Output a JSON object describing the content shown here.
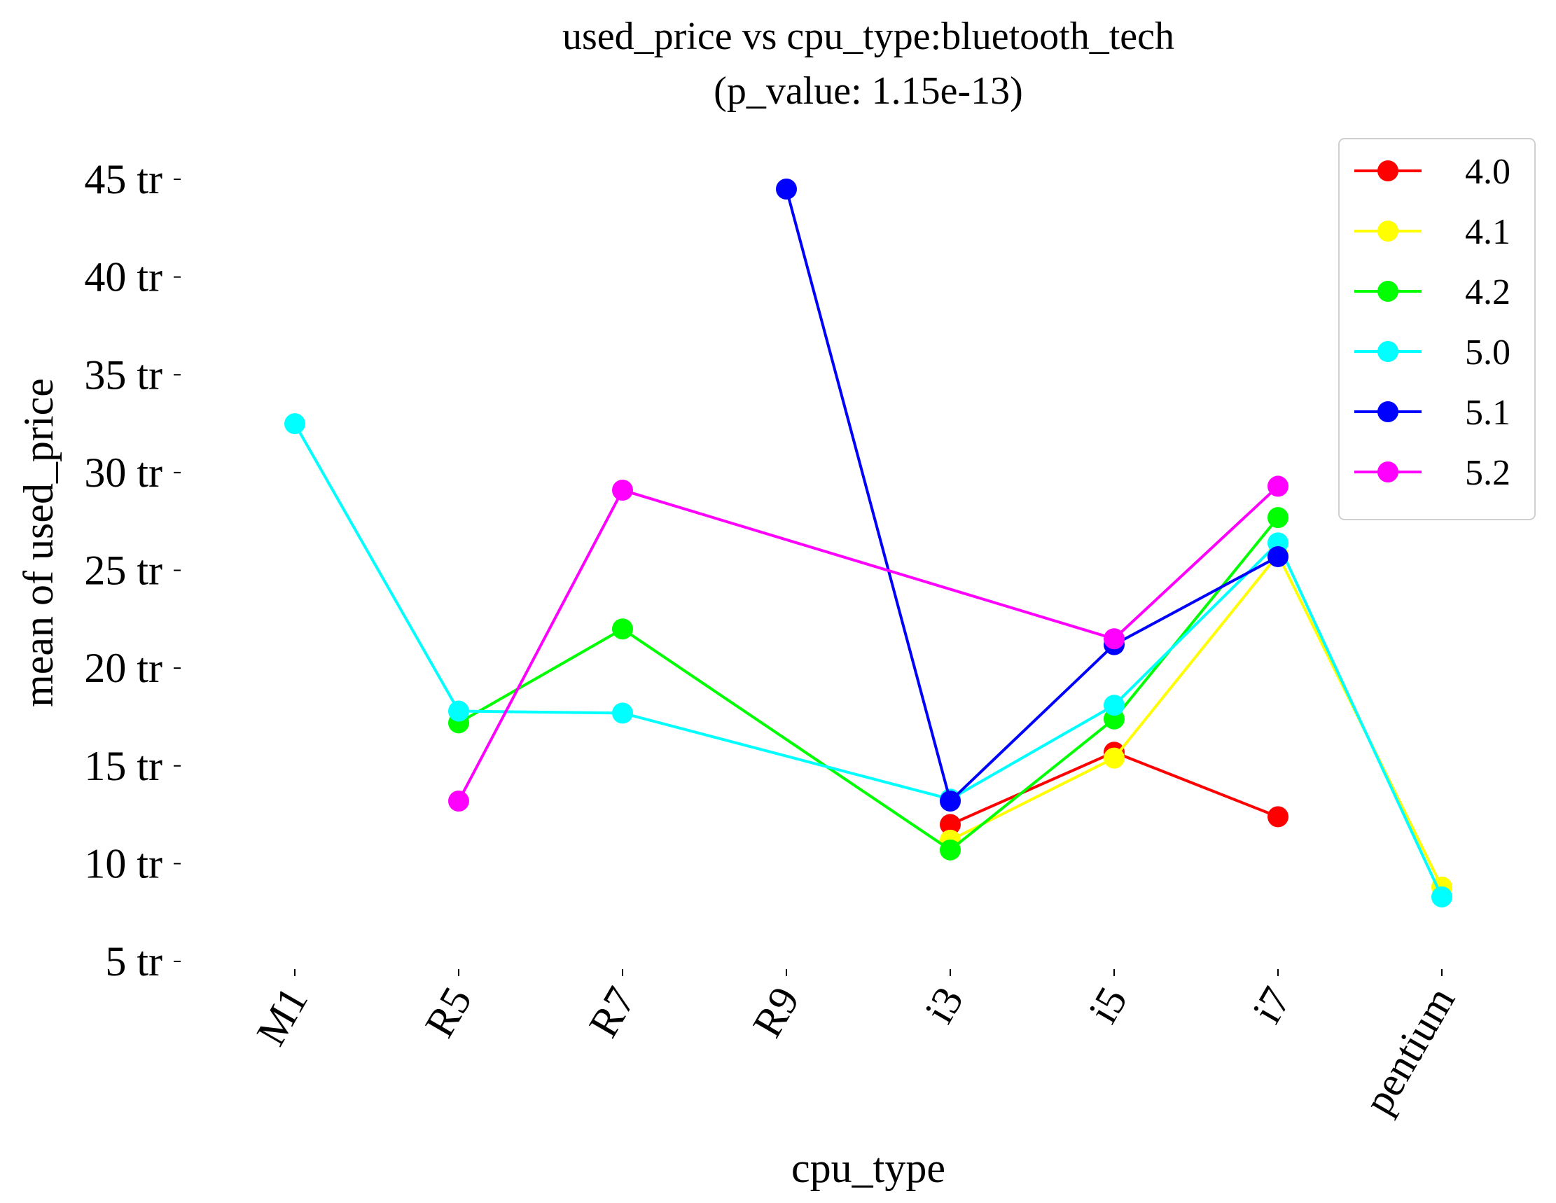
{
  "chart_data": {
    "type": "line",
    "title": "used_price vs cpu_type:bluetooth_tech",
    "subtitle": "(p_value: 1.15e-13)",
    "xlabel": "cpu_type",
    "ylabel": "mean of used_price",
    "categories": [
      "M1",
      "R5",
      "R7",
      "R9",
      "i3",
      "i5",
      "i7",
      "pentium"
    ],
    "ylim": [
      5,
      45
    ],
    "yticks": [
      5,
      10,
      15,
      20,
      25,
      30,
      35,
      40,
      45
    ],
    "ytick_suffix": " tr",
    "grid": false,
    "legend_position": "top-right",
    "series": [
      {
        "name": "4.0",
        "color": "#ff0000",
        "values": [
          null,
          null,
          null,
          null,
          12.0,
          15.7,
          12.4,
          null
        ]
      },
      {
        "name": "4.1",
        "color": "#ffff00",
        "values": [
          null,
          null,
          null,
          null,
          11.2,
          15.4,
          25.8,
          8.8
        ]
      },
      {
        "name": "4.2",
        "color": "#00ff00",
        "values": [
          null,
          17.2,
          22.0,
          null,
          10.7,
          17.4,
          27.7,
          null
        ]
      },
      {
        "name": "5.0",
        "color": "#00ffff",
        "values": [
          32.5,
          17.8,
          17.7,
          null,
          13.3,
          18.1,
          26.4,
          8.3
        ]
      },
      {
        "name": "5.1",
        "color": "#0000ff",
        "values": [
          null,
          null,
          null,
          44.5,
          13.2,
          21.2,
          25.7,
          null
        ]
      },
      {
        "name": "5.2",
        "color": "#ff00ff",
        "values": [
          null,
          13.2,
          29.1,
          null,
          null,
          21.5,
          29.3,
          null
        ]
      }
    ]
  }
}
